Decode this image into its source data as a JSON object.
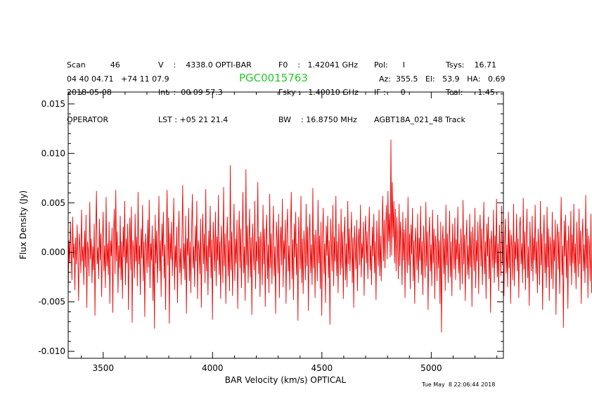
{
  "header": {
    "col1": [
      "Scan          46",
      "2018-05-08",
      "OPERATOR"
    ],
    "col2": [
      "V    :    4338.0 OPTI-BAR",
      "Int  :  00 09 57.3",
      "LST : +05 21 21.4"
    ],
    "col3": [
      "F0    :   1.42041 GHz",
      "Fsky :   1.40010 GHz",
      "BW    : 16.8750 MHz"
    ],
    "col4": [
      "Pol:      I",
      "IF :      0",
      "AGBT18A_021_48 Track"
    ],
    "col5": [
      "Tsys:    16.71",
      "Tcal:      1.45",
      ""
    ],
    "coords": "04 40 04.71   +74 11 07.9",
    "source": "PGC0015763",
    "azel": "Az:  355.5   El:   53.9   HA:   0.69"
  },
  "footer": {
    "timestamp": "Tue May  8 22:06:44 2018"
  },
  "colors": {
    "series": "#ee0000",
    "source": "#22cc22",
    "axes": "#000000"
  },
  "chart_data": {
    "type": "line",
    "xlabel": "BAR Velocity (km/s) OPTICAL",
    "ylabel": "Flux Density (Jy)",
    "xlim": [
      3340,
      5330
    ],
    "ylim": [
      -0.0107,
      0.0162
    ],
    "xticks": [
      3500,
      4000,
      4500,
      5000
    ],
    "xtick_labels": [
      "3500",
      "4000",
      "4500",
      "5000"
    ],
    "yticks": [
      -0.01,
      -0.005,
      0.0,
      0.005,
      0.01,
      0.015
    ],
    "ytick_labels": [
      "-0.010",
      "-0.005",
      "0.000",
      "0.005",
      "0.010",
      "0.015"
    ],
    "grid": false,
    "legend": "none",
    "series": [
      {
        "x_start": 3340,
        "x_step": 3.4,
        "values": [
          -0.0042,
          0.0012,
          -0.0011,
          0.0031,
          0.0001,
          -0.0028,
          0.0036,
          -0.0006,
          0.0009,
          -0.0038,
          0.0015,
          -0.0012,
          0.0028,
          -0.0003,
          -0.0049,
          0.0019,
          0.0005,
          -0.0021,
          0.0043,
          -0.0009,
          0.0006,
          -0.0033,
          0.0022,
          -0.0015,
          0.0038,
          -0.0056,
          0.0011,
          0.0002,
          -0.0024,
          0.0051,
          -0.0007,
          0.0014,
          -0.0031,
          0.0006,
          -0.0018,
          0.0029,
          -0.0064,
          0.0017,
          0.0062,
          -0.0012,
          0.0005,
          -0.0027,
          0.0034,
          -0.0008,
          0.0019,
          -0.0045,
          0.0008,
          0.0041,
          -0.0019,
          0.0007,
          -0.0036,
          0.0056,
          -0.0014,
          0.0009,
          -0.0023,
          0.0031,
          -0.0052,
          0.0012,
          -0.0004,
          0.0025,
          -0.0061,
          0.0018,
          0.0044,
          -0.0022,
          0.0063,
          -0.0009,
          0.0021,
          -0.0041,
          0.0007,
          -0.0016,
          0.0037,
          -0.0028,
          0.0011,
          -0.0047,
          0.0026,
          -0.0005,
          0.0052,
          -0.0033,
          0.0014,
          -0.0011,
          0.0029,
          -0.0058,
          0.0008,
          0.0035,
          -0.0018,
          0.0046,
          -0.0071,
          0.0012,
          0.0003,
          -0.0026,
          0.0039,
          -0.0009,
          0.0016,
          -0.0034,
          0.0061,
          -0.0012,
          0.0007,
          -0.0043,
          0.0024,
          -0.0006,
          0.0048,
          -0.0029,
          0.0011,
          -0.0065,
          0.0019,
          0.0004,
          -0.0021,
          0.0033,
          -0.0015,
          0.0053,
          -0.0036,
          0.0009,
          -0.0008,
          0.0027,
          -0.0049,
          0.0014,
          -0.0077,
          0.0038,
          -0.0011,
          0.0022,
          -0.0031,
          0.0006,
          0.0057,
          -0.0019,
          0.0012,
          -0.0045,
          0.0029,
          -0.0004,
          0.0041,
          -0.0026,
          0.0008,
          -0.0058,
          0.0016,
          0.0063,
          -0.0013,
          0.0035,
          -0.0072,
          0.0019,
          -0.0007,
          0.0031,
          -0.0024,
          0.0011,
          0.0055,
          -0.0038,
          0.0007,
          -0.0015,
          0.0026,
          -0.0051,
          0.0013,
          0.0042,
          -0.0021,
          0.0004,
          -0.0033,
          0.0018,
          0.0068,
          -0.0017,
          0.0009,
          -0.0028,
          0.0037,
          -0.0062,
          0.0014,
          -0.0003,
          0.0045,
          -0.0029,
          0.0011,
          -0.0041,
          0.0023,
          0.0059,
          -0.0016,
          0.0006,
          -0.0035,
          0.0027,
          -0.0009,
          0.0052,
          -0.0047,
          0.0012,
          0.0003,
          -0.0022,
          0.0034,
          -0.0056,
          0.0008,
          0.0039,
          -0.0012,
          0.0019,
          -0.0031,
          0.0064,
          -0.0019,
          0.0007,
          -0.0043,
          0.0022,
          -0.0005,
          0.0047,
          -0.0026,
          0.0013,
          -0.0068,
          0.0031,
          0.0009,
          -0.0019,
          0.0041,
          -0.0034,
          0.0016,
          -0.0008,
          0.0058,
          -0.0023,
          0.0011,
          -0.0047,
          0.0027,
          0.0004,
          -0.0031,
          0.0066,
          -0.0014,
          0.0019,
          -0.0052,
          0.0009,
          0.0036,
          -0.0024,
          0.0012,
          -0.0039,
          0.0088,
          -0.0018,
          0.0021,
          -0.0044,
          0.0007,
          0.0049,
          -0.0029,
          0.0014,
          -0.0011,
          0.0033,
          -0.0057,
          0.0008,
          0.0042,
          -0.0016,
          0.0024,
          -0.0036,
          0.0012,
          0.0061,
          -0.0021,
          0.0006,
          -0.0049,
          0.0084,
          -0.0013,
          0.0027,
          -0.0031,
          0.0009,
          0.0044,
          -0.0025,
          0.0015,
          -0.0063,
          0.0029,
          0.0003,
          -0.0018,
          0.0052,
          -0.0037,
          0.0011,
          -0.0009,
          0.0071,
          -0.0022,
          0.0016,
          -0.0045,
          0.0021,
          0.0005,
          -0.0033,
          0.0048,
          -0.0012,
          0.0024,
          -0.0055,
          0.0013,
          0.0038,
          -0.0027,
          0.0008,
          -0.0041,
          0.0059,
          -0.0016,
          0.0019,
          -0.0032,
          0.0011,
          0.0047,
          -0.0024,
          0.0006,
          -0.0062,
          0.0031,
          0.0014,
          -0.0021,
          0.0039,
          -0.0046,
          0.0009,
          0.0026,
          -0.0013,
          0.0054,
          -0.0035,
          0.0012,
          -0.0007,
          0.0033,
          -0.0052,
          0.0018,
          0.0044,
          -0.0019,
          0.0007,
          -0.0038,
          0.0024,
          0.0061,
          -0.0027,
          0.0013,
          -0.0048,
          0.0029,
          -0.0005,
          0.0041,
          -0.0023,
          0.0009,
          -0.0069,
          0.0036,
          0.0011,
          -0.0017,
          0.0057,
          -0.0031,
          0.0014,
          -0.0042,
          0.0022,
          0.0006,
          -0.0028,
          0.0049,
          -0.0014,
          0.0026,
          -0.0059,
          0.0012,
          0.0039,
          -0.0021,
          0.0008,
          -0.0033,
          0.0065,
          -0.0016,
          0.0018,
          -0.0046,
          0.0023,
          0.0004,
          -0.0029,
          0.0053,
          -0.0011,
          0.0017,
          -0.0037,
          0.0031,
          -0.0064,
          0.0015,
          0.0045,
          -0.0022,
          0.0009,
          -0.0051,
          0.0027,
          -0.0003,
          0.0037,
          -0.0026,
          0.0012,
          -0.0073,
          0.0034,
          0.0007,
          -0.0019,
          0.0048,
          -0.0034,
          0.0016,
          -0.0009,
          0.0057,
          -0.0024,
          0.0011,
          -0.0041,
          0.0029,
          0.0002,
          -0.0023,
          0.0044,
          -0.0016,
          0.0021,
          -0.0047,
          0.0013,
          0.0036,
          -0.0028,
          0.0009,
          -0.0035,
          0.0052,
          -0.0012,
          0.0024,
          -0.0019,
          0.0008,
          0.0041,
          -0.0031,
          0.0015,
          -0.0056,
          0.0027,
          0.0005,
          -0.0017,
          0.0033,
          -0.0039,
          0.0011,
          0.0024,
          -0.0013,
          0.0048,
          -0.0025,
          0.0009,
          -0.0006,
          0.0031,
          -0.0044,
          0.0016,
          0.0037,
          -0.0011,
          0.0021,
          -0.0027,
          0.0013,
          0.0046,
          -0.0018,
          0.0007,
          -0.0033,
          0.0026,
          -0.0004,
          0.0039,
          -0.0021,
          0.0011,
          -0.0048,
          0.0032,
          0.0008,
          -0.0014,
          0.0043,
          -0.0024,
          0.0017,
          -0.0029,
          0.0021,
          0.0057,
          -0.0009,
          0.0033,
          -0.0016,
          0.0026,
          0.0048,
          -0.0007,
          0.0062,
          0.0011,
          0.0039,
          -0.0005,
          0.0114,
          -0.0003,
          0.0071,
          0.0015,
          0.0052,
          -0.0011,
          0.0044,
          -0.0019,
          0.0036,
          0.0008,
          -0.0027,
          0.0049,
          -0.0014,
          0.0031,
          0.0012,
          -0.0033,
          0.0041,
          -0.0008,
          0.0023,
          -0.0046,
          0.0035,
          0.0004,
          -0.0021,
          0.0056,
          -0.0013,
          0.0019,
          -0.0037,
          0.0028,
          -0.0002,
          0.0045,
          -0.0029,
          0.0012,
          -0.0052,
          0.0025,
          0.0007,
          -0.0018,
          0.0039,
          -0.0031,
          0.0015,
          -0.0008,
          0.0047,
          -0.0023,
          0.0011,
          -0.0043,
          0.0027,
          0.0003,
          -0.0026,
          0.0051,
          -0.0014,
          0.0021,
          -0.0058,
          0.0013,
          0.0036,
          -0.0019,
          0.0008,
          -0.0034,
          0.0043,
          -0.0011,
          0.0024,
          -0.0047,
          0.0017,
          0.0004,
          -0.0029,
          0.0038,
          -0.0016,
          0.0012,
          -0.0052,
          0.0031,
          -0.0081,
          0.0009,
          0.0027,
          -0.0022,
          0.0014,
          -0.0039,
          0.0048,
          -0.0013,
          0.0019,
          -0.0031,
          0.0006,
          0.0042,
          -0.0025,
          0.0011,
          -0.0044,
          0.0029,
          0.0002,
          -0.0017,
          0.0035,
          -0.0028,
          0.0013,
          -0.0007,
          0.0046,
          -0.0021,
          0.0009,
          -0.0038,
          0.0024,
          0.0005,
          -0.0032,
          0.0053,
          -0.0012,
          0.0018,
          -0.0049,
          0.0011,
          0.0033,
          -0.0023,
          0.0007,
          -0.0027,
          0.0039,
          -0.0015,
          0.0021,
          -0.0055,
          0.0026,
          0.0003,
          -0.0019,
          0.0045,
          -0.0036,
          0.0012,
          -0.0009,
          0.0031,
          -0.0042,
          0.0016,
          0.0038,
          -0.0014,
          0.0024,
          -0.0033,
          0.0008,
          0.0051,
          -0.0022,
          0.0011,
          -0.0047,
          0.0029,
          -0.0004,
          0.0036,
          -0.0027,
          0.0014,
          -0.0061,
          0.0022,
          0.0007,
          -0.0016,
          0.0043,
          -0.0031,
          0.0017,
          -0.0011,
          0.0054,
          -0.0025,
          0.0009,
          -0.0039,
          0.0028,
          0.0001,
          -0.0024,
          0.0047,
          -0.0013,
          0.0019,
          -0.0044,
          0.0012,
          0.0034,
          -0.0021,
          0.0008,
          -0.0035,
          0.0041,
          -0.0016,
          0.0023,
          -0.0052,
          0.0018,
          0.0005,
          -0.0028,
          0.0049,
          -0.0034,
          0.0011,
          -0.0007,
          0.0039,
          -0.0019,
          0.0014,
          -0.0046,
          0.0026,
          0.0036,
          -0.0012,
          0.0009,
          -0.0031,
          0.0055,
          -0.0017,
          0.0021,
          -0.0038,
          0.0013,
          0.0044,
          -0.0026,
          0.0006,
          -0.0054,
          0.0031,
          0.0002,
          -0.0019,
          0.0037,
          -0.0029,
          0.0015,
          -0.0008,
          0.0048,
          -0.0022,
          0.0011,
          -0.0041,
          0.0024,
          0.0004,
          -0.0033,
          0.0052,
          -0.0013,
          0.0019,
          -0.0058,
          0.0012,
          0.0038,
          -0.0021,
          0.0009,
          -0.0036,
          0.0046,
          -0.0015,
          0.0024,
          -0.0049,
          0.0016,
          0.0003,
          -0.0027,
          0.0041,
          -0.0037,
          0.0013,
          -0.0009,
          0.0033,
          -0.0063,
          0.0014,
          0.0029,
          -0.0017,
          0.0021,
          -0.0042,
          0.0011,
          0.0056,
          -0.0023,
          0.0007,
          -0.0076,
          0.0032,
          -0.0004,
          0.0038,
          -0.0026,
          0.0012,
          -0.0057,
          0.0027,
          0.0006,
          -0.0014,
          0.0042,
          -0.0033,
          0.0018,
          -0.0011,
          0.0049,
          -0.0021,
          0.0009,
          -0.0037,
          0.0031,
          0.0001,
          -0.0025,
          0.0044,
          -0.0012,
          0.0022,
          -0.0052,
          0.0013,
          0.0034,
          -0.0019,
          0.0008,
          -0.0031,
          0.0058,
          -0.0016,
          0.0024,
          -0.0046,
          0.0017,
          0.0005,
          -0.0029,
          0.0039,
          -0.0041,
          0.0011,
          -0.0006,
          0.0036,
          -0.0021,
          0.0014,
          0.0027,
          -0.0013,
          0.0033,
          -0.0003,
          0.0024,
          -0.0018,
          0.0036,
          -0.0009,
          0.0012,
          -0.0038,
          0.0041,
          -0.0016,
          0.0021,
          -0.0031,
          0.0044,
          -0.0012,
          0.0029,
          -0.0022
        ]
      }
    ]
  }
}
